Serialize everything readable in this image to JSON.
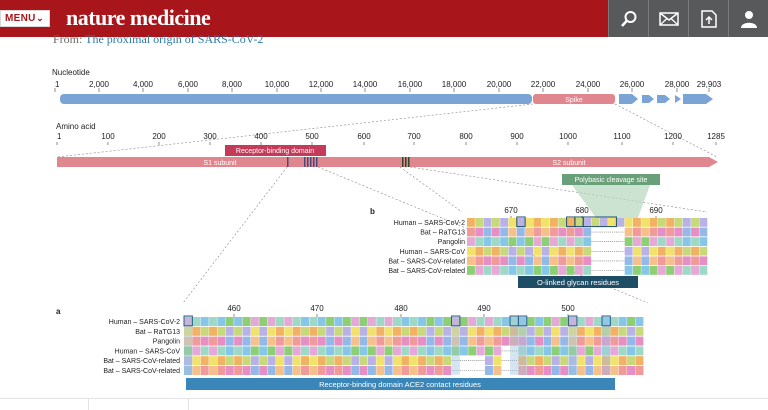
{
  "header": {
    "menu_label": "MENU",
    "logo_text": "nature medicine",
    "tools": [
      "search-icon",
      "mail-icon",
      "download-icon",
      "account-icon"
    ],
    "bar_color": "#a8151b"
  },
  "source": {
    "prefix": "From:",
    "article_title": "The proximal origin of SARS-CoV-2"
  },
  "figure": {
    "nucleotide": {
      "label": "Nucleotide",
      "ticks": [
        "1",
        "2,000",
        "4,000",
        "6,000",
        "8,000",
        "10,000",
        "12,000",
        "14,000",
        "16,000",
        "18,000",
        "20,000",
        "22,000",
        "24,000",
        "26,000",
        "28,000",
        "29,903"
      ],
      "spike_label": "Spike"
    },
    "amino_acid": {
      "label": "Amino acid",
      "ticks": [
        "1",
        "100",
        "200",
        "300",
        "400",
        "500",
        "600",
        "700",
        "800",
        "900",
        "1000",
        "1100",
        "1200",
        "1285"
      ],
      "rbd_label": "Receptor-binding domain",
      "s1_label": "S1 subunit",
      "s2_label": "S2 subunit"
    },
    "panel_b": {
      "letter": "b",
      "ticks": [
        "670",
        "680",
        "690"
      ],
      "cleavage_label": "Polybasic cleavage site",
      "glycan_label": "O-linked glycan residues",
      "species": [
        "Human – SARS-CoV-2",
        "Bat – RaTG13",
        "Pangolin",
        "Human – SARS-CoV",
        "Bat – SARS-CoV-related",
        "Bat – SARS-CoV-related"
      ]
    },
    "panel_a": {
      "letter": "a",
      "ticks": [
        "460",
        "470",
        "480",
        "490",
        "500"
      ],
      "contact_label": "Receptor-binding domain ACE2 contact residues",
      "species": [
        "Human – SARS-CoV-2",
        "Bat – RaTG13",
        "Pangolin",
        "Human – SARS-CoV",
        "Bat – SARS-CoV-related",
        "Bat – SARS-CoV-related"
      ]
    },
    "colors": {
      "genome_bar": "#7aa3d6",
      "spike": "#e0868e",
      "rbd_tag": "#c43a59",
      "cleavage_tag": "#6aa079",
      "glycan_tag": "#1e4e66",
      "contact_tag": "#3a86b8"
    }
  }
}
